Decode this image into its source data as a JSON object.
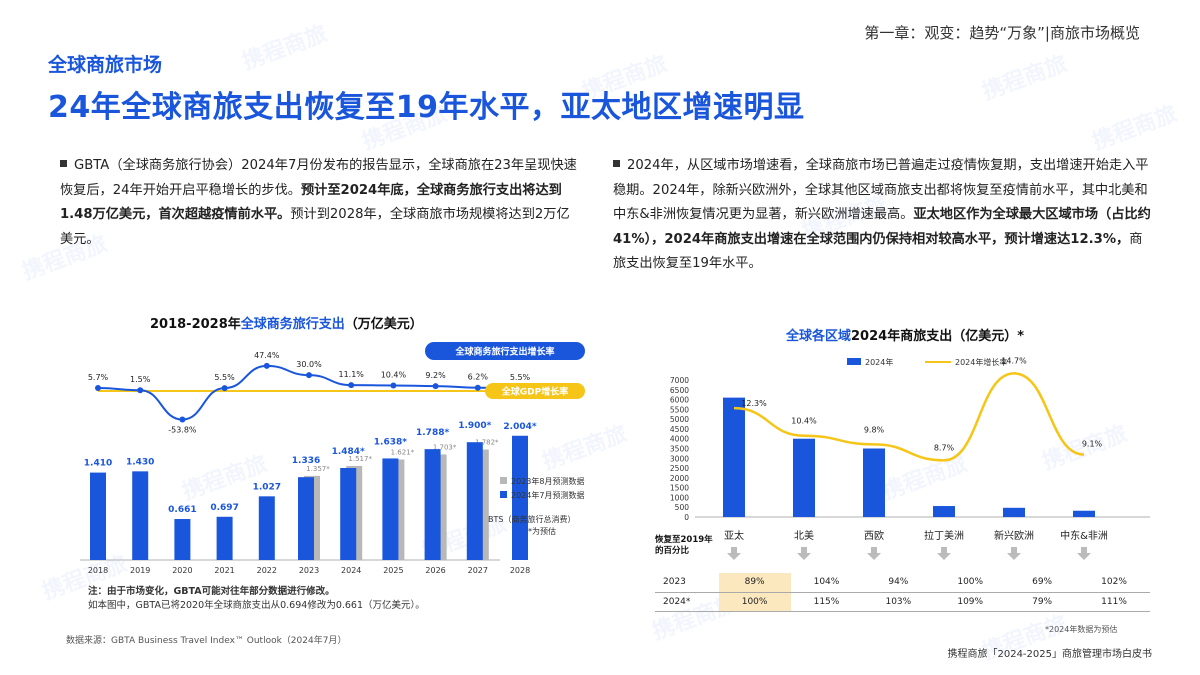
{
  "header": {
    "chapter": "第一章：观变：趋势“万象”|商旅市场概览",
    "section": "全球商旅市场",
    "headline": "24年全球商旅支出恢复至19年水平，亚太地区增速明显"
  },
  "watermark": "携程商旅",
  "left_text": {
    "p1": "GBTA（全球商务旅行协会）2024年7月份发布的报告显示，全球商旅在23年呈现快速恢复后，24年开始开启平稳增长的步伐。",
    "p1_bold": "预计至2024年底，全球商务旅行支出将达到1.48万亿美元，首次超越疫情前水平。",
    "p1_end": "预计到2028年，全球商旅市场规模将达到2万亿美元。"
  },
  "right_text": {
    "p1": "2024年，从区域市场增速看，全球商旅市场已普遍走过疫情恢复期，支出增速开始走入平稳期。2024年，除新兴欧洲外，全球其他区域商旅支出都将恢复至疫情前水平，其中北美和中东&非洲恢复情况更为显著，新兴欧洲增速最高。",
    "p1_bold": "亚太地区作为全球最大区域市场（占比约41%），2024年商旅支出增速在全球范围内仍保持相对较高水平，预计增速达12.3%，",
    "p1_end": "商旅支出恢复至19年水平。"
  },
  "chart_data": [
    {
      "type": "bar",
      "title_pre": "2018-2028年",
      "title_hl": "全球商务旅行支出",
      "title_post": "（万亿美元）",
      "categories": [
        "2018",
        "2019",
        "2020",
        "2021",
        "2022",
        "2023",
        "2024",
        "2025",
        "2026",
        "2027",
        "2028"
      ],
      "series": [
        {
          "name": "2024年7月预测数据",
          "values": [
            1.41,
            1.43,
            0.661,
            0.697,
            1.027,
            1.336,
            1.484,
            1.638,
            1.788,
            1.9,
            2.004
          ],
          "labels": [
            "1.410",
            "1.430",
            "0.661",
            "0.697",
            "1.027",
            "1.336",
            "1.484*",
            "1.638*",
            "1.788*",
            "1.900*",
            "2.004*"
          ],
          "color": "#1a56db"
        },
        {
          "name": "2023年8月预测数据",
          "values": [
            null,
            null,
            null,
            null,
            null,
            1.357,
            1.517,
            1.621,
            1.703,
            1.782,
            null
          ],
          "labels": [
            "",
            "",
            "",
            "",
            "",
            "1.357*",
            "1.517*",
            "1.621*",
            "1.703*",
            "1.782*",
            ""
          ],
          "color": "#b8b8b8"
        }
      ],
      "growth": {
        "name": "全球商务旅行支出增长率",
        "values": [
          5.7,
          1.5,
          -53.8,
          5.5,
          47.4,
          30.0,
          11.1,
          10.4,
          9.2,
          6.2,
          5.5
        ],
        "labels": [
          "5.7%",
          "1.5%",
          "-53.8%",
          "5.5%",
          "47.4%",
          "30.0%",
          "11.1%",
          "10.4%",
          "9.2%",
          "6.2%",
          "5.5%"
        ],
        "color": "#1a56db"
      },
      "gdp": {
        "name": "全球GDP增长率",
        "color": "#f5c518"
      },
      "bts_note": "BTS（商务旅行总消费）",
      "est_note": "*为预估"
    },
    {
      "type": "bar",
      "title_hl": "全球各区域",
      "title_post": "2024年商旅支出（亿美元）*",
      "categories": [
        "亚太",
        "北美",
        "西欧",
        "拉丁美洲",
        "新兴欧洲",
        "中东&非洲"
      ],
      "values": [
        6100,
        4000,
        3500,
        560,
        470,
        320
      ],
      "growth_values": [
        12.3,
        10.4,
        9.8,
        8.7,
        14.7,
        9.1
      ],
      "growth_labels": [
        "12.3%",
        "10.4%",
        "9.8%",
        "8.7%",
        "14.7%",
        "9.1%"
      ],
      "legend": [
        "2024年",
        "2024年增长率"
      ],
      "yticks": [
        "0",
        "500",
        "1000",
        "1500",
        "2000",
        "2500",
        "3000",
        "3500",
        "4000",
        "4500",
        "5000",
        "5500",
        "6000",
        "6500",
        "7000"
      ],
      "ylim": [
        0,
        7000
      ],
      "bar_color": "#1a56db",
      "line_color": "#f5c518",
      "recovery": {
        "label": "恢复至2019年的百分比",
        "rows": [
          {
            "year": "2023",
            "values": [
              "89%",
              "104%",
              "94%",
              "100%",
              "69%",
              "102%"
            ]
          },
          {
            "year": "2024*",
            "values": [
              "100%",
              "115%",
              "103%",
              "109%",
              "79%",
              "111%"
            ]
          }
        ]
      },
      "est_note": "*2024年数据为预估"
    }
  ],
  "notes": {
    "n1": "注：由于市场变化，GBTA可能对往年部分数据进行修改。",
    "n2": "如本图中，GBTA已将2020年全球商旅支出从0.694修改为0.661（万亿美元）。"
  },
  "source": "数据来源：GBTA Business Travel Index™ Outlook（2024年7月）",
  "footer": "携程商旅「2024-2025」商旅管理市场白皮书"
}
